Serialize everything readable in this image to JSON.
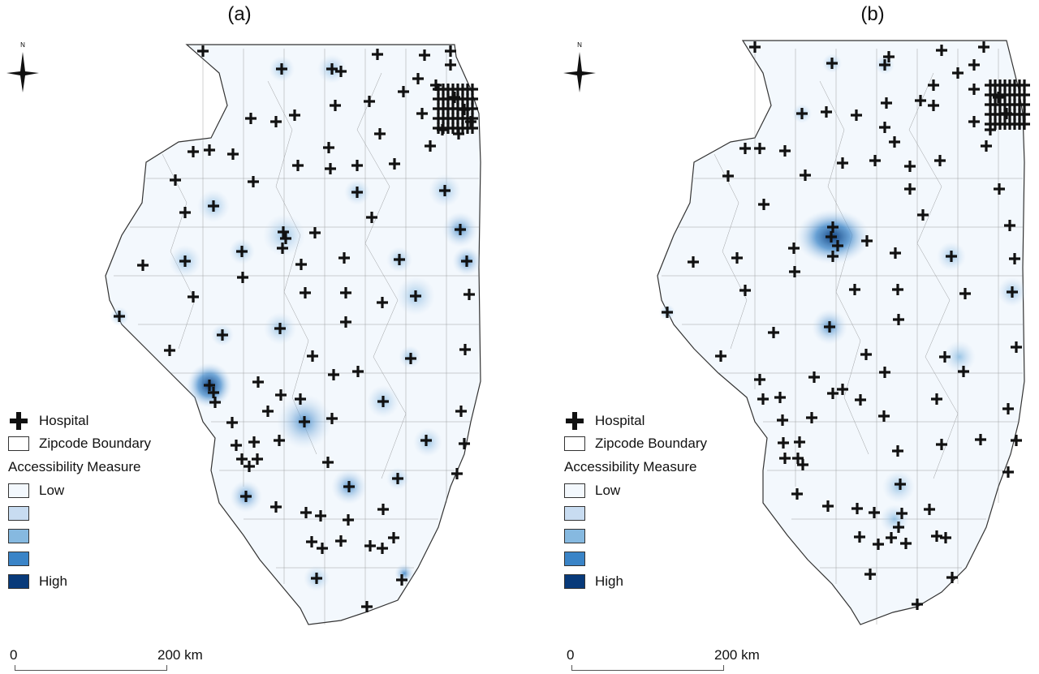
{
  "panels": [
    {
      "label": "(a)",
      "compass_letter": "N",
      "legend": {
        "hospital": "Hospital",
        "zipcode": "Zipcode Boundary",
        "title": "Accessibility Measure",
        "classes": [
          "Low",
          "",
          "",
          "",
          "High"
        ],
        "colors": [
          "#f3f8fd",
          "#c8dcf1",
          "#86b9e0",
          "#3a84c7",
          "#083a7a"
        ]
      },
      "scalebar": {
        "start": "0",
        "end": "200 km"
      }
    },
    {
      "label": "(b)",
      "compass_letter": "N",
      "legend": {
        "hospital": "Hospital",
        "zipcode": "Zipcode Boundary",
        "title": "Accessibility Measure",
        "classes": [
          "Low",
          "",
          "",
          "",
          "High"
        ],
        "colors": [
          "#f3f8fd",
          "#c8dcf1",
          "#86b9e0",
          "#3a84c7",
          "#083a7a"
        ]
      },
      "scalebar": {
        "start": "0",
        "end": "200 km"
      }
    }
  ]
}
